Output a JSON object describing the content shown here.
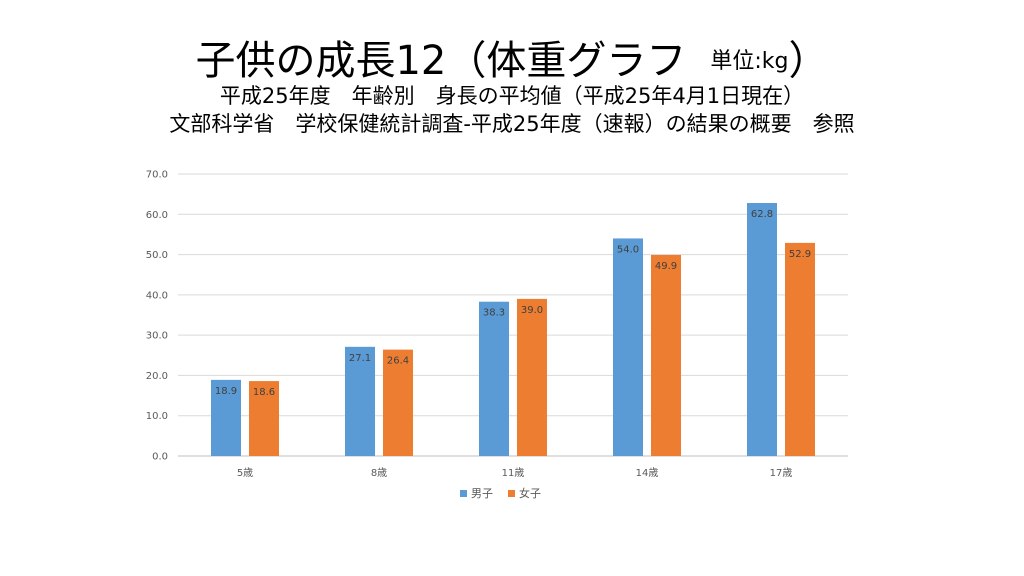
{
  "title": {
    "main": "子供の成長12（体重グラフ",
    "unit": "単位:kg",
    "unit_close": "）",
    "line2": "平成25年度　年齢別　身長の平均値（平成25年4月1日現在）",
    "line3": "文部科学省　学校保健統計調査-平成25年度（速報）の結果の概要　参照"
  },
  "chart_data": {
    "type": "bar",
    "categories": [
      "5歳",
      "8歳",
      "11歳",
      "14歳",
      "17歳"
    ],
    "series": [
      {
        "name": "男子",
        "color": "#5B9BD5",
        "values": [
          18.9,
          27.1,
          38.3,
          54.0,
          62.8
        ],
        "labels": [
          "18.9",
          "27.1",
          "38.3",
          "54.0",
          "62.8"
        ]
      },
      {
        "name": "女子",
        "color": "#ED7D31",
        "values": [
          18.6,
          26.4,
          39.0,
          49.9,
          52.9
        ],
        "labels": [
          "18.6",
          "26.4",
          "39.0",
          "49.9",
          "52.9"
        ]
      }
    ],
    "ylim": [
      0,
      70
    ],
    "yticks": [
      "0.0",
      "10.0",
      "20.0",
      "30.0",
      "40.0",
      "50.0",
      "60.0",
      "70.0"
    ],
    "grid": true,
    "legend_position": "bottom"
  }
}
